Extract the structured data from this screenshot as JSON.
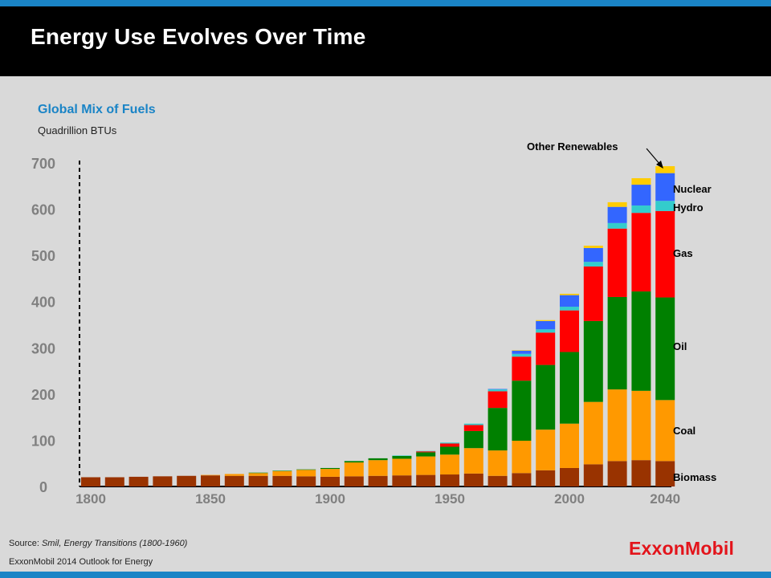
{
  "header": {
    "title": "Energy Use Evolves Over Time"
  },
  "chart_data": {
    "type": "bar",
    "stacked": true,
    "title": "Global Mix of Fuels",
    "unit": "Quadrillion BTUs",
    "ylim": [
      0,
      700
    ],
    "yticks": [
      "0",
      "100",
      "200",
      "300",
      "400",
      "500",
      "600",
      "700"
    ],
    "xtick_labels": [
      "1800",
      "1850",
      "1900",
      "1950",
      "2000",
      "2040"
    ],
    "categories": [
      1800,
      1810,
      1820,
      1830,
      1840,
      1850,
      1860,
      1870,
      1880,
      1890,
      1900,
      1910,
      1920,
      1930,
      1940,
      1950,
      1960,
      1970,
      1980,
      1990,
      2000,
      2010,
      2020,
      2030,
      2040
    ],
    "series": [
      {
        "name": "Biomass",
        "color": "#993300",
        "values": [
          20,
          20,
          21,
          22,
          23,
          24,
          23,
          23,
          23,
          22,
          21,
          22,
          23,
          24,
          25,
          26,
          28,
          23,
          29,
          35,
          40,
          48,
          55,
          57,
          55
        ]
      },
      {
        "name": "Coal",
        "color": "#ff9900",
        "values": [
          0,
          0,
          0,
          0,
          0,
          1,
          4,
          6,
          10,
          14,
          17,
          30,
          34,
          36,
          40,
          43,
          55,
          55,
          70,
          88,
          96,
          135,
          155,
          150,
          132
        ]
      },
      {
        "name": "Oil",
        "color": "#008000",
        "values": [
          0,
          0,
          0,
          0,
          0,
          0,
          0,
          1,
          1,
          1,
          2,
          3,
          4,
          6,
          9,
          17,
          37,
          92,
          130,
          140,
          155,
          175,
          200,
          215,
          222
        ]
      },
      {
        "name": "Gas",
        "color": "#ff0000",
        "values": [
          0,
          0,
          0,
          0,
          0,
          0,
          0,
          0,
          0,
          0,
          0,
          0,
          0,
          0,
          2,
          7,
          13,
          36,
          52,
          70,
          90,
          118,
          148,
          170,
          187
        ]
      },
      {
        "name": "Hydro",
        "color": "#33cccc",
        "values": [
          0,
          0,
          0,
          0,
          0,
          0,
          0,
          0,
          0,
          0,
          0,
          0,
          0,
          1,
          1,
          2,
          3,
          4,
          6,
          7,
          8,
          10,
          12,
          16,
          22
        ]
      },
      {
        "name": "Nuclear",
        "color": "#3366ff",
        "values": [
          0,
          0,
          0,
          0,
          0,
          0,
          0,
          0,
          0,
          0,
          0,
          0,
          0,
          0,
          0,
          0,
          0,
          1,
          7,
          18,
          25,
          30,
          35,
          45,
          60
        ]
      },
      {
        "name": "Other Renewables",
        "color": "#ffcc00",
        "values": [
          0,
          0,
          0,
          0,
          0,
          0,
          0,
          0,
          0,
          0,
          0,
          0,
          0,
          0,
          0,
          0,
          0,
          0,
          1,
          2,
          3,
          5,
          10,
          14,
          15
        ]
      }
    ]
  },
  "footer": {
    "source_prefix": "Source: ",
    "source_text": "Smil, Energy Transitions (1800-1960)",
    "outlook": "ExxonMobil 2014 Outlook for Energy",
    "logo": "ExxonMobil"
  }
}
